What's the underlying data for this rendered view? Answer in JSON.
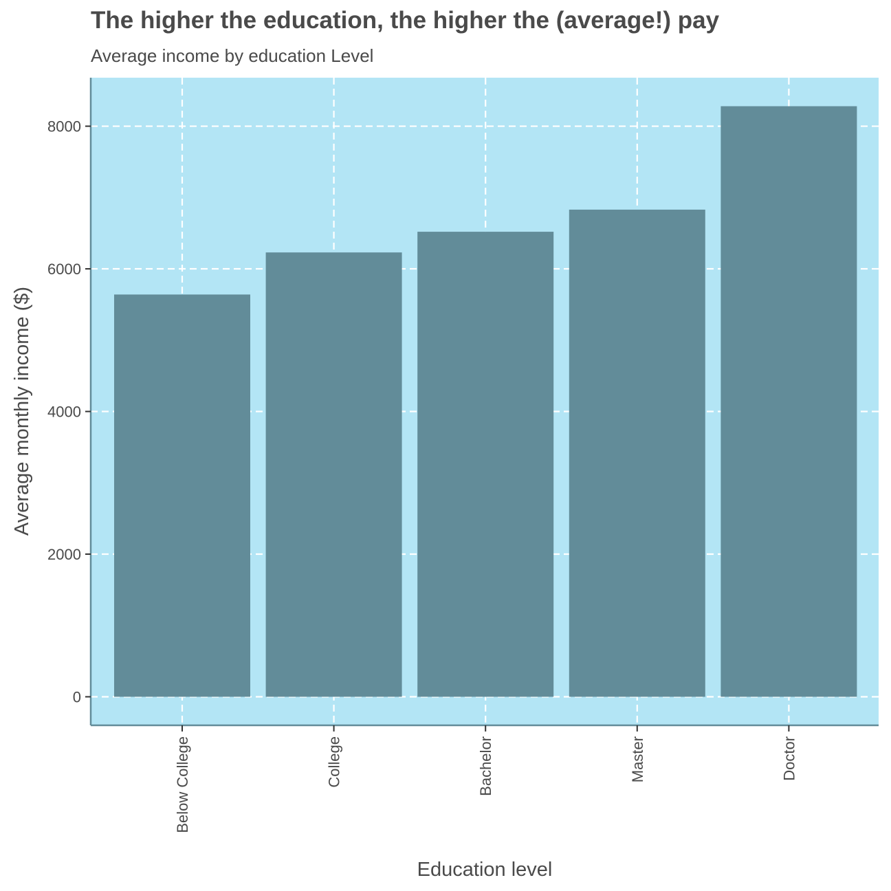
{
  "chart_data": {
    "type": "bar",
    "title": "The higher the education, the higher the (average!) pay",
    "subtitle": "Average income by education Level",
    "xlabel": "Education level",
    "ylabel": "Average monthly income ($)",
    "categories": [
      "Below College",
      "College",
      "Bachelor",
      "Master",
      "Doctor"
    ],
    "values": [
      5640,
      6230,
      6520,
      6830,
      8280
    ],
    "ylim": [
      -400,
      8680
    ],
    "yticks": [
      0,
      2000,
      4000,
      6000,
      8000
    ],
    "ytick_labels": [
      "0",
      "2000",
      "4000",
      "6000",
      "8000"
    ],
    "grid": "dashed",
    "legend": "none",
    "colors": {
      "panel_background": "#b3e5f5",
      "bar_fill": "#628c99",
      "axis_line": "#628c99",
      "grid_line": "#ffffff",
      "text": "#4a4a4a"
    }
  }
}
